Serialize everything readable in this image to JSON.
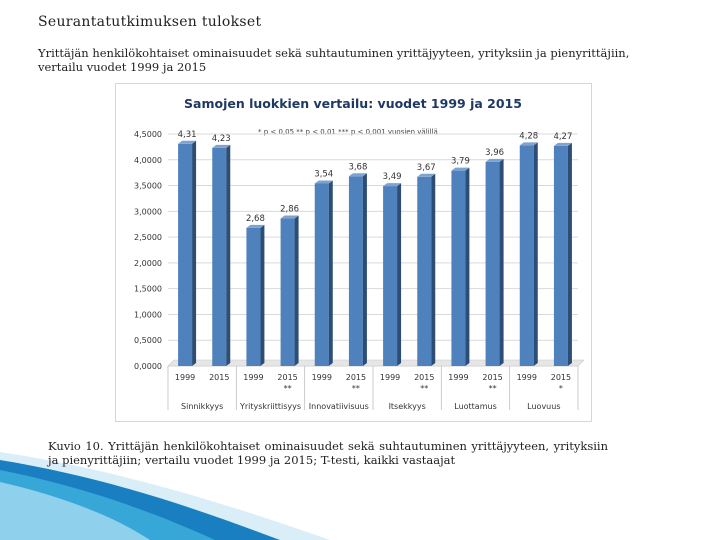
{
  "slide": {
    "title": "Seurantatutkimuksen tulokset",
    "subtitle": "Yrittäjän henkilökohtaiset ominaisuudet sekä suhtautuminen yrittäjyyteen, yrityksiin ja pienyrittäjiin, vertailu vuodet 1999 ja 2015",
    "caption": "Kuvio 10. Yrittäjän henkilökohtaiset ominaisuudet sekä suhtautuminen yrittäjyyteen, yrityksiin ja pienyrittäjiin; vertailu vuodet 1999 ja 2015; T-testi, kaikki vastaajat"
  },
  "chart_data": {
    "type": "bar",
    "title": "Samojen luokkien vertailu: vuodet 1999 ja 2015",
    "annotation": "* p < 0,05 ** p < 0,01 *** p < 0,001 vuosien välillä",
    "categories": [
      "1999",
      "2015",
      "1999",
      "2015",
      "1999",
      "2015",
      "1999",
      "2015",
      "1999",
      "2015",
      "1999",
      "2015"
    ],
    "category_marks": [
      "",
      "",
      "",
      "**",
      "",
      "**",
      "",
      "**",
      "",
      "**",
      "",
      "*"
    ],
    "groups": [
      "Sinnikkyys",
      "Yrityskriittisyys",
      "Innovatiivisuus",
      "Itsekkyys",
      "Luottamus",
      "Luovuus"
    ],
    "values": [
      4.31,
      4.23,
      2.68,
      2.86,
      3.54,
      3.68,
      3.49,
      3.67,
      3.79,
      3.96,
      4.28,
      4.27
    ],
    "value_labels": [
      "4,31",
      "4,23",
      "2,68",
      "2,86",
      "3,54",
      "3,68",
      "3,49",
      "3,67",
      "3,79",
      "3,96",
      "4,28",
      "4,27"
    ],
    "yticks": [
      "0,0000",
      "0,5000",
      "1,0000",
      "1,5000",
      "2,0000",
      "2,5000",
      "3,0000",
      "3,5000",
      "4,0000",
      "4,5000"
    ],
    "ylim": [
      0,
      4.5
    ],
    "grid": true,
    "colors": {
      "bar": "#4f81bd",
      "bar_side": "#2c4d75",
      "bar_top": "#7fa3d1",
      "title": "#1f3864"
    }
  }
}
